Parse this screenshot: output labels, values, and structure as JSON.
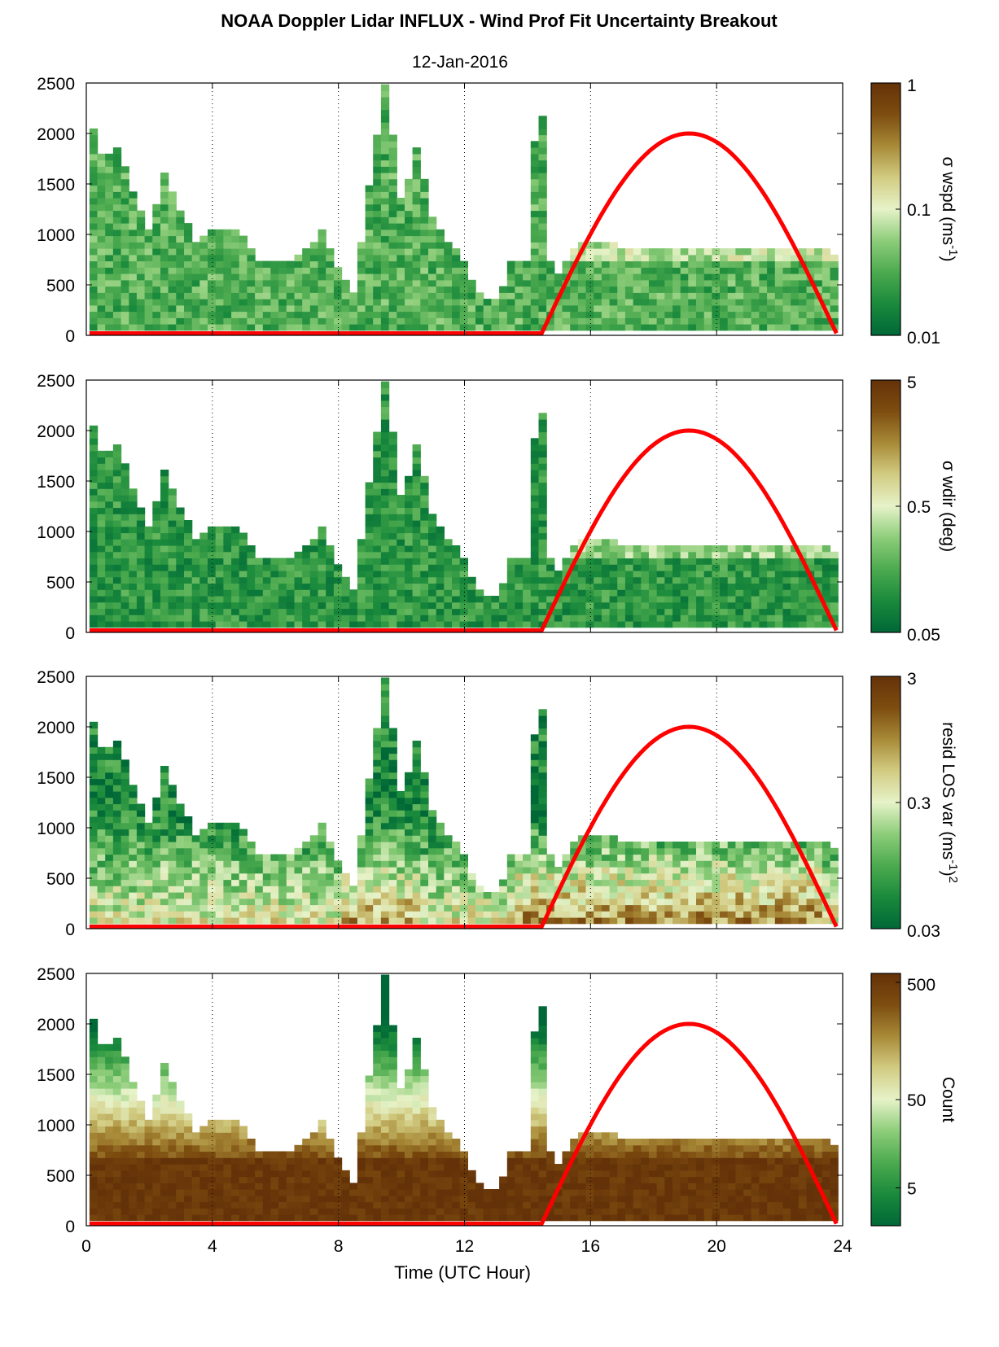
{
  "figure": {
    "title": "NOAA Doppler Lidar INFLUX - Wind Prof Fit Uncertainty Breakout",
    "subtitle": "12-Jan-2016",
    "xlabel": "Time (UTC Hour)"
  },
  "colormap": {
    "stops": [
      "#006837",
      "#1a8a3c",
      "#4caa4f",
      "#8dcd7a",
      "#e6f2c8",
      "#d2cc82",
      "#a88a38",
      "#7d4d10",
      "#643208"
    ]
  },
  "daylight_curve": {
    "color": "#ff0000",
    "sunrise_hour": 14.45,
    "sunset_hour": 23.8,
    "peak_hour": 19.1,
    "peak_height": 2000
  },
  "chart_data": [
    {
      "type": "heatmap",
      "id": "wspd",
      "colorbar": {
        "label_prefix": "σ wspd (ms",
        "label_sup": "-1",
        "label_suffix": ")",
        "ticks": [
          "1",
          "0.1",
          "0.01"
        ],
        "scale": "log",
        "range": [
          0.01,
          1
        ]
      },
      "x": {
        "range": [
          0,
          24
        ],
        "ticks": [
          0,
          4,
          8,
          12,
          16,
          20,
          24
        ]
      },
      "y": {
        "range": [
          0,
          2500
        ],
        "ticks": [
          0,
          500,
          1000,
          1500,
          2000,
          2500
        ]
      },
      "top_profile": [
        [
          0.1,
          2150
        ],
        [
          0.5,
          1750
        ],
        [
          1.0,
          1850
        ],
        [
          1.5,
          1350
        ],
        [
          2.0,
          1000
        ],
        [
          2.5,
          1600
        ],
        [
          3.0,
          1200
        ],
        [
          3.5,
          900
        ],
        [
          4.0,
          1050
        ],
        [
          4.7,
          1050
        ],
        [
          5.5,
          700
        ],
        [
          6.5,
          700
        ],
        [
          7.5,
          1000
        ],
        [
          8.0,
          600
        ],
        [
          8.5,
          400
        ],
        [
          9.0,
          1500
        ],
        [
          9.5,
          2500
        ],
        [
          10.0,
          1300
        ],
        [
          10.5,
          1850
        ],
        [
          11.0,
          1100
        ],
        [
          12.0,
          700
        ],
        [
          12.5,
          350
        ],
        [
          13.0,
          300
        ],
        [
          13.5,
          700
        ],
        [
          14.0,
          700
        ],
        [
          14.2,
          1900
        ],
        [
          14.5,
          2150
        ],
        [
          14.7,
          700
        ],
        [
          15.0,
          600
        ],
        [
          15.5,
          850
        ],
        [
          16.0,
          900
        ],
        [
          17.0,
          850
        ],
        [
          18.0,
          850
        ],
        [
          19.0,
          850
        ],
        [
          20.0,
          850
        ],
        [
          21.0,
          850
        ],
        [
          22.0,
          850
        ],
        [
          23.0,
          850
        ],
        [
          23.7,
          800
        ]
      ]
    },
    {
      "type": "heatmap",
      "id": "wdir",
      "colorbar": {
        "label_prefix": "σ wdir (deg)",
        "label_sup": "",
        "label_suffix": "",
        "ticks": [
          "5",
          "0.5",
          "0.05"
        ],
        "scale": "log",
        "range": [
          0.05,
          5
        ]
      },
      "x": {
        "range": [
          0,
          24
        ],
        "ticks": [
          0,
          4,
          8,
          12,
          16,
          20,
          24
        ]
      },
      "y": {
        "range": [
          0,
          2500
        ],
        "ticks": [
          0,
          500,
          1000,
          1500,
          2000,
          2500
        ]
      },
      "top_profile": [
        [
          0.1,
          2150
        ],
        [
          0.5,
          1750
        ],
        [
          1.0,
          1850
        ],
        [
          1.5,
          1350
        ],
        [
          2.0,
          1000
        ],
        [
          2.5,
          1600
        ],
        [
          3.0,
          1200
        ],
        [
          3.5,
          900
        ],
        [
          4.0,
          1050
        ],
        [
          4.7,
          1050
        ],
        [
          5.5,
          700
        ],
        [
          6.5,
          700
        ],
        [
          7.5,
          1000
        ],
        [
          8.0,
          600
        ],
        [
          8.5,
          400
        ],
        [
          9.0,
          1500
        ],
        [
          9.5,
          2500
        ],
        [
          10.0,
          1300
        ],
        [
          10.5,
          1850
        ],
        [
          11.0,
          1100
        ],
        [
          12.0,
          700
        ],
        [
          12.5,
          350
        ],
        [
          13.0,
          300
        ],
        [
          13.5,
          700
        ],
        [
          14.0,
          700
        ],
        [
          14.2,
          1900
        ],
        [
          14.5,
          2150
        ],
        [
          14.7,
          700
        ],
        [
          15.0,
          600
        ],
        [
          15.5,
          850
        ],
        [
          16.0,
          900
        ],
        [
          17.0,
          850
        ],
        [
          18.0,
          850
        ],
        [
          19.0,
          850
        ],
        [
          20.0,
          850
        ],
        [
          21.0,
          850
        ],
        [
          22.0,
          850
        ],
        [
          23.0,
          850
        ],
        [
          23.7,
          800
        ]
      ]
    },
    {
      "type": "heatmap",
      "id": "resid",
      "colorbar": {
        "label_prefix": "resid LOS var (ms",
        "label_sup": "-1",
        "label_suffix": ")",
        "label_sup2": "2",
        "ticks": [
          "3",
          "0.3",
          "0.03"
        ],
        "scale": "log",
        "range": [
          0.03,
          3
        ]
      },
      "x": {
        "range": [
          0,
          24
        ],
        "ticks": [
          0,
          4,
          8,
          12,
          16,
          20,
          24
        ]
      },
      "y": {
        "range": [
          0,
          2500
        ],
        "ticks": [
          0,
          500,
          1000,
          1500,
          2000,
          2500
        ]
      },
      "top_profile": [
        [
          0.1,
          2150
        ],
        [
          0.5,
          1750
        ],
        [
          1.0,
          1850
        ],
        [
          1.5,
          1350
        ],
        [
          2.0,
          1000
        ],
        [
          2.5,
          1600
        ],
        [
          3.0,
          1200
        ],
        [
          3.5,
          900
        ],
        [
          4.0,
          1050
        ],
        [
          4.7,
          1050
        ],
        [
          5.5,
          700
        ],
        [
          6.5,
          700
        ],
        [
          7.5,
          1000
        ],
        [
          8.0,
          600
        ],
        [
          8.5,
          400
        ],
        [
          9.0,
          1500
        ],
        [
          9.5,
          2500
        ],
        [
          10.0,
          1300
        ],
        [
          10.5,
          1850
        ],
        [
          11.0,
          1100
        ],
        [
          12.0,
          700
        ],
        [
          12.5,
          350
        ],
        [
          13.0,
          300
        ],
        [
          13.5,
          700
        ],
        [
          14.0,
          700
        ],
        [
          14.2,
          1900
        ],
        [
          14.5,
          2150
        ],
        [
          14.7,
          700
        ],
        [
          15.0,
          600
        ],
        [
          15.5,
          850
        ],
        [
          16.0,
          900
        ],
        [
          17.0,
          850
        ],
        [
          18.0,
          850
        ],
        [
          19.0,
          850
        ],
        [
          20.0,
          850
        ],
        [
          21.0,
          850
        ],
        [
          22.0,
          850
        ],
        [
          23.0,
          850
        ],
        [
          23.7,
          800
        ]
      ]
    },
    {
      "type": "heatmap",
      "id": "count",
      "colorbar": {
        "label_prefix": "Count",
        "label_sup": "",
        "label_suffix": "",
        "ticks": [
          "500",
          "50",
          "5"
        ],
        "scale": "log",
        "range": [
          1,
          500
        ]
      },
      "x": {
        "range": [
          0,
          24
        ],
        "ticks": [
          0,
          4,
          8,
          12,
          16,
          20,
          24
        ]
      },
      "y": {
        "range": [
          0,
          2500
        ],
        "ticks": [
          0,
          500,
          1000,
          1500,
          2000,
          2500
        ]
      },
      "top_profile": [
        [
          0.1,
          2150
        ],
        [
          0.5,
          1750
        ],
        [
          1.0,
          1850
        ],
        [
          1.5,
          1350
        ],
        [
          2.0,
          1000
        ],
        [
          2.5,
          1600
        ],
        [
          3.0,
          1200
        ],
        [
          3.5,
          900
        ],
        [
          4.0,
          1050
        ],
        [
          4.7,
          1050
        ],
        [
          5.5,
          700
        ],
        [
          6.5,
          700
        ],
        [
          7.5,
          1000
        ],
        [
          8.0,
          600
        ],
        [
          8.5,
          400
        ],
        [
          9.0,
          1500
        ],
        [
          9.5,
          2500
        ],
        [
          10.0,
          1300
        ],
        [
          10.5,
          1850
        ],
        [
          11.0,
          1100
        ],
        [
          12.0,
          700
        ],
        [
          12.5,
          350
        ],
        [
          13.0,
          300
        ],
        [
          13.5,
          700
        ],
        [
          14.0,
          700
        ],
        [
          14.2,
          1900
        ],
        [
          14.5,
          2150
        ],
        [
          14.7,
          700
        ],
        [
          15.0,
          600
        ],
        [
          15.5,
          850
        ],
        [
          16.0,
          900
        ],
        [
          17.0,
          850
        ],
        [
          18.0,
          850
        ],
        [
          19.0,
          850
        ],
        [
          20.0,
          850
        ],
        [
          21.0,
          850
        ],
        [
          22.0,
          850
        ],
        [
          23.0,
          850
        ],
        [
          23.7,
          800
        ]
      ]
    }
  ]
}
